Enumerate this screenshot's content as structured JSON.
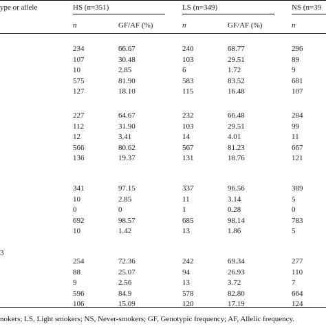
{
  "header": {
    "first_col": "ype or allele",
    "hs": "HS (n=351)",
    "ls": "LS (n=349)",
    "ns": "NS (n=39"
  },
  "subheader": {
    "hs_n": "n",
    "hs_gf": "GF/AF (%)",
    "ls_n": "n",
    "ls_gf": "GF/AF (%)",
    "ns_n": "n"
  },
  "groups": [
    {
      "label": "",
      "rows": [
        {
          "hs_n": "234",
          "hs_gf": "66.67",
          "ls_n": "240",
          "ls_gf": "68.77",
          "ns_n": "296"
        },
        {
          "hs_n": "107",
          "hs_gf": "30.48",
          "ls_n": "103",
          "ls_gf": "29.51",
          "ns_n": "89"
        },
        {
          "hs_n": "10",
          "hs_gf": "2.85",
          "ls_n": "6",
          "ls_gf": "1.72",
          "ns_n": "9"
        },
        {
          "hs_n": "575",
          "hs_gf": "81.90",
          "ls_n": "583",
          "ls_gf": "83.52",
          "ns_n": "681"
        },
        {
          "hs_n": "127",
          "hs_gf": "18.10",
          "ls_n": "115",
          "ls_gf": "16.48",
          "ns_n": "107"
        }
      ]
    },
    {
      "label": "",
      "rows": [
        {
          "hs_n": "227",
          "hs_gf": "64.67",
          "ls_n": "232",
          "ls_gf": "66.48",
          "ns_n": "284"
        },
        {
          "hs_n": "112",
          "hs_gf": "31.90",
          "ls_n": "103",
          "ls_gf": "29.51",
          "ns_n": "99"
        },
        {
          "hs_n": "12",
          "hs_gf": "3.41",
          "ls_n": "14",
          "ls_gf": "4.01",
          "ns_n": "11"
        },
        {
          "hs_n": "566",
          "hs_gf": "80.62",
          "ls_n": "567",
          "ls_gf": "81.23",
          "ns_n": "667"
        },
        {
          "hs_n": "136",
          "hs_gf": "19.37",
          "ls_n": "131",
          "ls_gf": "18.76",
          "ns_n": "121"
        }
      ]
    },
    {
      "label": "",
      "rows": [
        {
          "hs_n": "341",
          "hs_gf": "97.15",
          "ls_n": "337",
          "ls_gf": "96.56",
          "ns_n": "389"
        },
        {
          "hs_n": "10",
          "hs_gf": "2.85",
          "ls_n": "11",
          "ls_gf": "3.14",
          "ns_n": "5"
        },
        {
          "hs_n": "0",
          "hs_gf": "0",
          "ls_n": "1",
          "ls_gf": "0.28",
          "ns_n": "0"
        },
        {
          "hs_n": "692",
          "hs_gf": "98.57",
          "ls_n": "685",
          "ls_gf": "98.14",
          "ns_n": "783"
        },
        {
          "hs_n": "10",
          "hs_gf": "1.42",
          "ls_n": "13",
          "ls_gf": "1.86",
          "ns_n": "5"
        }
      ]
    },
    {
      "label": "3",
      "rows": [
        {
          "hs_n": "254",
          "hs_gf": "72.36",
          "ls_n": "242",
          "ls_gf": "69.34",
          "ns_n": "277"
        },
        {
          "hs_n": "88",
          "hs_gf": "25.07",
          "ls_n": "94",
          "ls_gf": "26.93",
          "ns_n": "110"
        },
        {
          "hs_n": "9",
          "hs_gf": "2.56",
          "ls_n": "13",
          "ls_gf": "3.72",
          "ns_n": "7"
        },
        {
          "hs_n": "596",
          "hs_gf": "84.9",
          "ls_n": "578",
          "ls_gf": "82.80",
          "ns_n": "664"
        },
        {
          "hs_n": "106",
          "hs_gf": "15.09",
          "ls_n": "120",
          "ls_gf": "17.19",
          "ns_n": "124"
        }
      ]
    }
  ],
  "footnote": "nokers; LS, Light smokers; NS, Never-smokers; GF, Genotypic frequency; AF, Allelic frequency."
}
